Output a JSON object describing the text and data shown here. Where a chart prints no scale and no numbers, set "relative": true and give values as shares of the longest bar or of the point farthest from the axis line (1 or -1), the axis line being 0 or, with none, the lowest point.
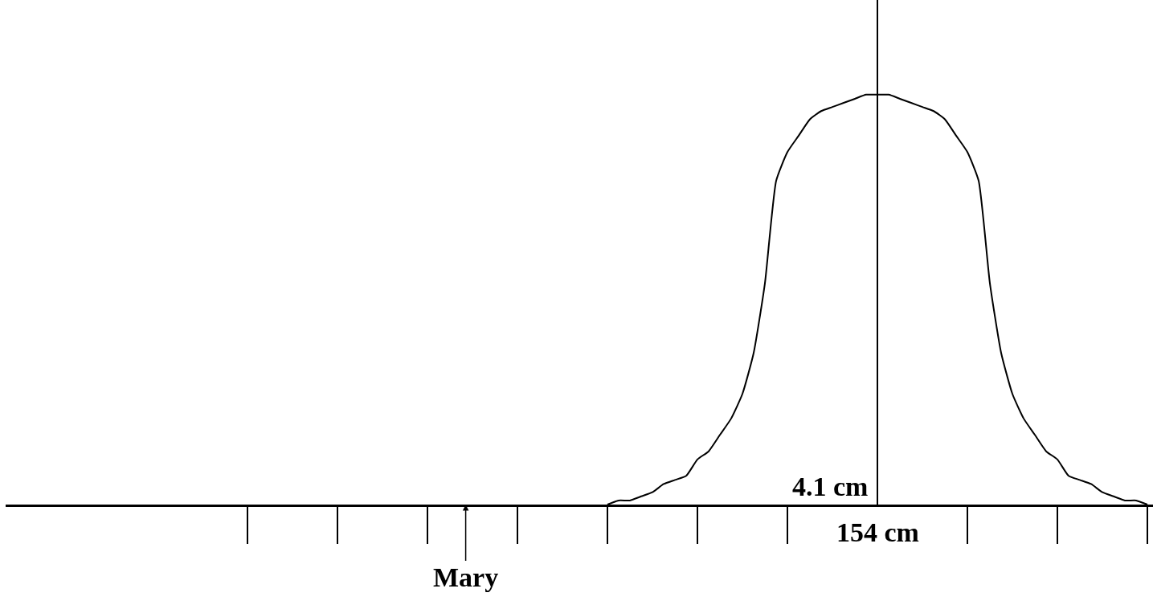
{
  "chart_data": {
    "type": "line",
    "relative": true,
    "categories": [
      null,
      null,
      null,
      null,
      null,
      null,
      null,
      null,
      null,
      null,
      null,
      null,
      null,
      null,
      null,
      null,
      null,
      null,
      null,
      null,
      null,
      null,
      null,
      null,
      null,
      null,
      null,
      null,
      null,
      null,
      null,
      null,
      null,
      null,
      null,
      null,
      null,
      null,
      null,
      null,
      null,
      null,
      null,
      null,
      null,
      null,
      null,
      null,
      null,
      null,
      null,
      null,
      null,
      null,
      null,
      null,
      null,
      null,
      null,
      null,
      null,
      null,
      null,
      null,
      null,
      null,
      null,
      null,
      null,
      null,
      null,
      null,
      null,
      null,
      null,
      null,
      null,
      null,
      null,
      null,
      null,
      null,
      null,
      null,
      null,
      null,
      null,
      null,
      null,
      null,
      null,
      null,
      null,
      null,
      null,
      null,
      null,
      null,
      null,
      null,
      null,
      null
    ],
    "series": [
      {
        "color": "#000000",
        "values": [
          null,
          null,
          null,
          null,
          null,
          null,
          null,
          null,
          null,
          null,
          null,
          null,
          null,
          null,
          null,
          null,
          null,
          null,
          null,
          null,
          null,
          null,
          null,
          null,
          null,
          null,
          null,
          null,
          null,
          null,
          null,
          null,
          null,
          null,
          null,
          null,
          null,
          null,
          null,
          null,
          null,
          null,
          null,
          null,
          null,
          null,
          null,
          null,
          null,
          null,
          null,
          null,
          null,
          0,
          0.01,
          0.01,
          0.02,
          0.03,
          0.05,
          0.06,
          0.07,
          0.11,
          0.13,
          0.17,
          0.21,
          0.27,
          0.37,
          0.54,
          0.79,
          0.86,
          0.9,
          0.94,
          0.96,
          0.97,
          0.98,
          0.99,
          1,
          1,
          1,
          0.99,
          0.98,
          0.97,
          0.96,
          0.94,
          0.9,
          0.86,
          0.79,
          0.54,
          0.37,
          0.27,
          0.21,
          0.17,
          0.13,
          0.11,
          0.07,
          0.06,
          0.05,
          0.03,
          0.02,
          0.01,
          0.01,
          0
        ]
      }
    ],
    "ref_lines": [
      {
        "axis": "x",
        "color": "#000000"
      }
    ],
    "annotations": [
      "4.1 cm",
      "154 cm",
      "Mary"
    ]
  }
}
